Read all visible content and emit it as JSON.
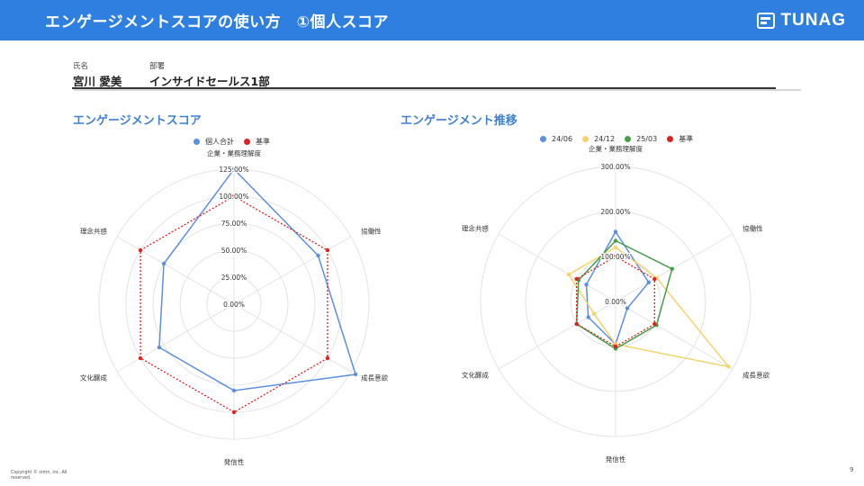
{
  "header": {
    "title": "エンゲージメントスコアの使い方　①個人スコア",
    "logo_text": "TUNAG",
    "bg_color": "#2f7fe0"
  },
  "person": {
    "name_label": "氏名",
    "name_value": "宮川 愛美",
    "dept_label": "部署",
    "dept_value": "インサイドセールス1部"
  },
  "footer": {
    "copyright": "Copyright © stmn, inc. All reserved.",
    "page_number": "9"
  },
  "chart_data": [
    {
      "type": "radar",
      "title": "エンゲージメントスコア",
      "axes": [
        "企業・業務理解度",
        "協働性",
        "成長意欲",
        "発信性",
        "文化醸成",
        "理念共感"
      ],
      "ticks": [
        "0.00%",
        "25.00%",
        "50.00%",
        "75.00%",
        "100.00%",
        "125.00%"
      ],
      "rmax": 125,
      "legend_position": "top",
      "series": [
        {
          "name": "個人合計",
          "color": "#5b8fe0",
          "style": "solid",
          "values": [
            125,
            90,
            130,
            80,
            80,
            75
          ]
        },
        {
          "name": "基準",
          "color": "#e02020",
          "style": "dotted",
          "values": [
            100,
            100,
            100,
            100,
            100,
            100
          ]
        }
      ]
    },
    {
      "type": "radar",
      "title": "エンゲージメント推移",
      "axes": [
        "企業・業務理解度",
        "協働性",
        "成長意欲",
        "発信性",
        "文化醸成",
        "理念共感"
      ],
      "ticks": [
        "0.00%",
        "100.00%",
        "200.00%",
        "300.00%"
      ],
      "rmax": 300,
      "legend_position": "top",
      "series": [
        {
          "name": "24/06",
          "color": "#5b8fe0",
          "style": "solid",
          "values": [
            155,
            85,
            30,
            95,
            70,
            75
          ]
        },
        {
          "name": "24/12",
          "color": "#f5d36b",
          "style": "solid",
          "values": [
            120,
            105,
            290,
            95,
            55,
            120
          ]
        },
        {
          "name": "25/03",
          "color": "#43a047",
          "style": "solid",
          "values": [
            135,
            145,
            105,
            105,
            100,
            95
          ]
        },
        {
          "name": "基準",
          "color": "#e02020",
          "style": "dotted",
          "values": [
            100,
            100,
            100,
            100,
            100,
            100
          ]
        }
      ]
    }
  ]
}
